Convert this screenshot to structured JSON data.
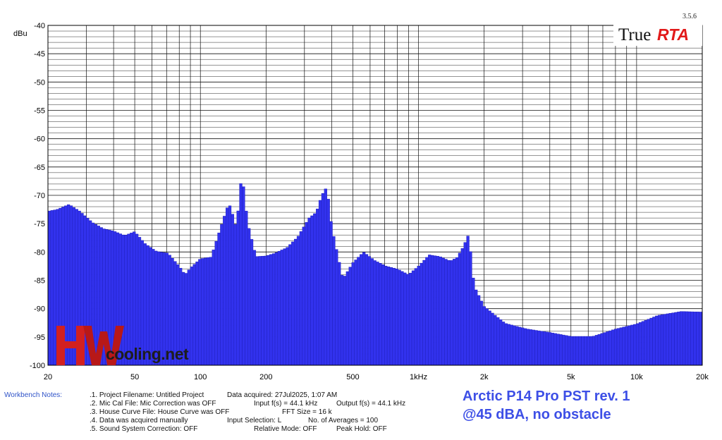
{
  "version": "3.5.6",
  "logo": {
    "part1": "True",
    "part2": "RTA"
  },
  "watermark": {
    "part1": "HW",
    "part2": "cooling.net"
  },
  "caption": {
    "line1": "Arctic P14 Pro PST rev. 1",
    "line2": "@45 dBA, no obstacle"
  },
  "notes": {
    "title": "Workbench Notes:",
    "items": [
      ".1. Project Filename: Untitled Project",
      ".2. Mic Cal File: Mic Correction was OFF",
      ".3. House Curve File: House Curve was OFF",
      ".4. Data was acquired manually",
      ".5. Sound System Correction: OFF",
      "Data acquired: 27Jul2025, 1:07 AM",
      "Input f(s) = 44.1 kHz",
      "Output f(s) = 44.1 kHz",
      "FFT Size = 16 k",
      "Input Selection: L",
      "No. of Averages = 100",
      "Relative Mode: OFF",
      "Peak Hold: OFF"
    ]
  },
  "colors": {
    "bar": "#3232ee",
    "bar_edge": "#1c1cb5",
    "grid": "#111111",
    "caption": "#3d4fe6"
  },
  "chart_data": {
    "type": "bar",
    "ylabel": "dBu",
    "xscale": "log",
    "xlim": [
      20,
      20000
    ],
    "ylim": [
      -100,
      -40
    ],
    "grid": true,
    "xtick_labels": [
      "20",
      "50",
      "100",
      "200",
      "500",
      "1kHz",
      "2k",
      "5k",
      "10k",
      "20k"
    ],
    "xtick_values": [
      20,
      50,
      100,
      200,
      500,
      1000,
      2000,
      5000,
      10000,
      20000
    ],
    "ytick_labels": [
      "-40",
      "-45",
      "-50",
      "-55",
      "-60",
      "-65",
      "-70",
      "-75",
      "-80",
      "-85",
      "-90",
      "-95",
      "-100"
    ],
    "ytick_values": [
      -40,
      -45,
      -50,
      -55,
      -60,
      -65,
      -70,
      -75,
      -80,
      -85,
      -90,
      -95,
      -100
    ],
    "spectrum": {
      "freq": [
        20,
        22,
        25,
        28,
        32,
        36,
        40,
        45,
        50,
        56,
        63,
        71,
        80,
        85,
        90,
        100,
        112,
        125,
        135,
        140,
        145,
        150,
        155,
        160,
        165,
        170,
        180,
        200,
        220,
        250,
        280,
        315,
        340,
        360,
        380,
        400,
        450,
        500,
        560,
        630,
        710,
        800,
        900,
        1000,
        1120,
        1250,
        1400,
        1500,
        1600,
        1700,
        1800,
        2000,
        2500,
        3150,
        4000,
        5000,
        6300,
        8000,
        10000,
        12500,
        16000,
        20000
      ],
      "dbu": [
        -72.8,
        -72.5,
        -71.6,
        -72.8,
        -74.8,
        -75.9,
        -76.3,
        -77.1,
        -76.4,
        -78.6,
        -79.9,
        -80.2,
        -82.5,
        -84.0,
        -82.8,
        -81.2,
        -80.9,
        -75.2,
        -71.3,
        -73.1,
        -75.3,
        -72.0,
        -65.7,
        -70.8,
        -75.0,
        -77.0,
        -80.8,
        -80.7,
        -80.2,
        -79.2,
        -77.3,
        -74.0,
        -73.0,
        -70.0,
        -68.5,
        -75.5,
        -84.8,
        -81.9,
        -80.0,
        -81.5,
        -82.5,
        -83.0,
        -84.0,
        -82.5,
        -80.5,
        -80.8,
        -81.6,
        -81.0,
        -79.2,
        -76.8,
        -86.0,
        -89.6,
        -92.6,
        -93.6,
        -94.2,
        -94.9,
        -94.9,
        -93.6,
        -92.7,
        -91.2,
        -90.5,
        -90.6
      ]
    }
  }
}
